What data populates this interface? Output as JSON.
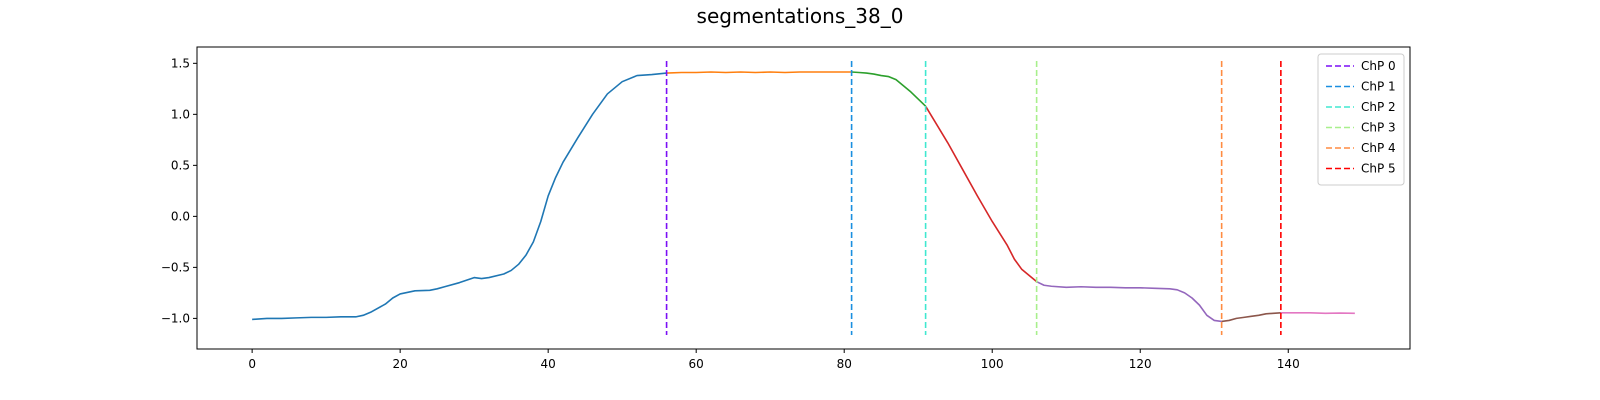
{
  "chart_data": {
    "type": "line",
    "title": "segmentations_38_0",
    "xlabel": "",
    "ylabel": "",
    "xlim": [
      -7.45,
      156.45
    ],
    "ylim": [
      -1.3,
      1.66
    ],
    "x_ticks": [
      0,
      20,
      40,
      60,
      80,
      100,
      120,
      140
    ],
    "y_ticks": [
      -1.0,
      -0.5,
      0.0,
      0.5,
      1.0,
      1.5
    ],
    "x_tick_labels": [
      "0",
      "20",
      "40",
      "60",
      "80",
      "100",
      "120",
      "140"
    ],
    "y_tick_labels": [
      "−1.0",
      "−0.5",
      "0.0",
      "0.5",
      "1.0",
      "1.5"
    ],
    "grid": false,
    "legend_position": "top-right",
    "series": [
      {
        "color": "#1f77b4",
        "points": [
          [
            0,
            -1.01
          ],
          [
            2,
            -1.0
          ],
          [
            4,
            -1.0
          ],
          [
            6,
            -0.995
          ],
          [
            8,
            -0.99
          ],
          [
            10,
            -0.99
          ],
          [
            12,
            -0.985
          ],
          [
            14,
            -0.985
          ],
          [
            15,
            -0.97
          ],
          [
            16,
            -0.94
          ],
          [
            18,
            -0.86
          ],
          [
            19,
            -0.8
          ],
          [
            20,
            -0.76
          ],
          [
            22,
            -0.73
          ],
          [
            24,
            -0.725
          ],
          [
            25,
            -0.71
          ],
          [
            26,
            -0.69
          ],
          [
            28,
            -0.65
          ],
          [
            30,
            -0.6
          ],
          [
            31,
            -0.61
          ],
          [
            32,
            -0.6
          ],
          [
            34,
            -0.565
          ],
          [
            35,
            -0.53
          ],
          [
            36,
            -0.47
          ],
          [
            37,
            -0.38
          ],
          [
            38,
            -0.25
          ],
          [
            39,
            -0.05
          ],
          [
            40,
            0.2
          ],
          [
            41,
            0.38
          ],
          [
            42,
            0.53
          ],
          [
            44,
            0.77
          ],
          [
            46,
            1.0
          ],
          [
            48,
            1.2
          ],
          [
            50,
            1.32
          ],
          [
            52,
            1.38
          ],
          [
            54,
            1.39
          ],
          [
            56,
            1.405
          ]
        ]
      },
      {
        "color": "#ff7f0e",
        "points": [
          [
            56,
            1.405
          ],
          [
            58,
            1.41
          ],
          [
            60,
            1.41
          ],
          [
            62,
            1.415
          ],
          [
            64,
            1.41
          ],
          [
            66,
            1.415
          ],
          [
            68,
            1.41
          ],
          [
            70,
            1.415
          ],
          [
            72,
            1.41
          ],
          [
            74,
            1.415
          ],
          [
            76,
            1.415
          ],
          [
            78,
            1.415
          ],
          [
            81,
            1.415
          ]
        ]
      },
      {
        "color": "#2ca02c",
        "points": [
          [
            81,
            1.415
          ],
          [
            82,
            1.41
          ],
          [
            83,
            1.405
          ],
          [
            84,
            1.395
          ],
          [
            85,
            1.38
          ],
          [
            86,
            1.37
          ],
          [
            87,
            1.34
          ],
          [
            88,
            1.28
          ],
          [
            89,
            1.22
          ],
          [
            90,
            1.15
          ],
          [
            91,
            1.08
          ]
        ]
      },
      {
        "color": "#d62728",
        "points": [
          [
            91,
            1.08
          ],
          [
            92,
            0.96
          ],
          [
            93,
            0.84
          ],
          [
            94,
            0.72
          ],
          [
            96,
            0.46
          ],
          [
            98,
            0.2
          ],
          [
            100,
            -0.05
          ],
          [
            102,
            -0.28
          ],
          [
            103,
            -0.42
          ],
          [
            104,
            -0.52
          ],
          [
            105,
            -0.58
          ],
          [
            106,
            -0.64
          ]
        ]
      },
      {
        "color": "#9467bd",
        "points": [
          [
            106,
            -0.64
          ],
          [
            107,
            -0.675
          ],
          [
            108,
            -0.685
          ],
          [
            110,
            -0.695
          ],
          [
            112,
            -0.69
          ],
          [
            114,
            -0.695
          ],
          [
            116,
            -0.695
          ],
          [
            118,
            -0.7
          ],
          [
            120,
            -0.7
          ],
          [
            122,
            -0.705
          ],
          [
            124,
            -0.71
          ],
          [
            125,
            -0.72
          ],
          [
            126,
            -0.75
          ],
          [
            127,
            -0.8
          ],
          [
            128,
            -0.87
          ],
          [
            129,
            -0.97
          ],
          [
            130,
            -1.02
          ],
          [
            131,
            -1.03
          ]
        ]
      },
      {
        "color": "#8c564b",
        "points": [
          [
            131,
            -1.03
          ],
          [
            132,
            -1.02
          ],
          [
            133,
            -1.0
          ],
          [
            134,
            -0.99
          ],
          [
            135,
            -0.98
          ],
          [
            136,
            -0.97
          ],
          [
            137,
            -0.955
          ],
          [
            138,
            -0.95
          ],
          [
            139,
            -0.945
          ]
        ]
      },
      {
        "color": "#e377c2",
        "points": [
          [
            139,
            -0.945
          ],
          [
            141,
            -0.945
          ],
          [
            143,
            -0.945
          ],
          [
            145,
            -0.95
          ],
          [
            147,
            -0.948
          ],
          [
            149,
            -0.95
          ]
        ]
      }
    ],
    "changepoints": [
      {
        "name": "ChP 0",
        "x": 56,
        "color": "#7b0ff5"
      },
      {
        "name": "ChP 1",
        "x": 81,
        "color": "#1a8fe0"
      },
      {
        "name": "ChP 2",
        "x": 91,
        "color": "#40e8d0"
      },
      {
        "name": "ChP 3",
        "x": 106,
        "color": "#a8f08c"
      },
      {
        "name": "ChP 4",
        "x": 131,
        "color": "#ff8c42"
      },
      {
        "name": "ChP 5",
        "x": 139,
        "color": "#ff0000"
      }
    ]
  }
}
